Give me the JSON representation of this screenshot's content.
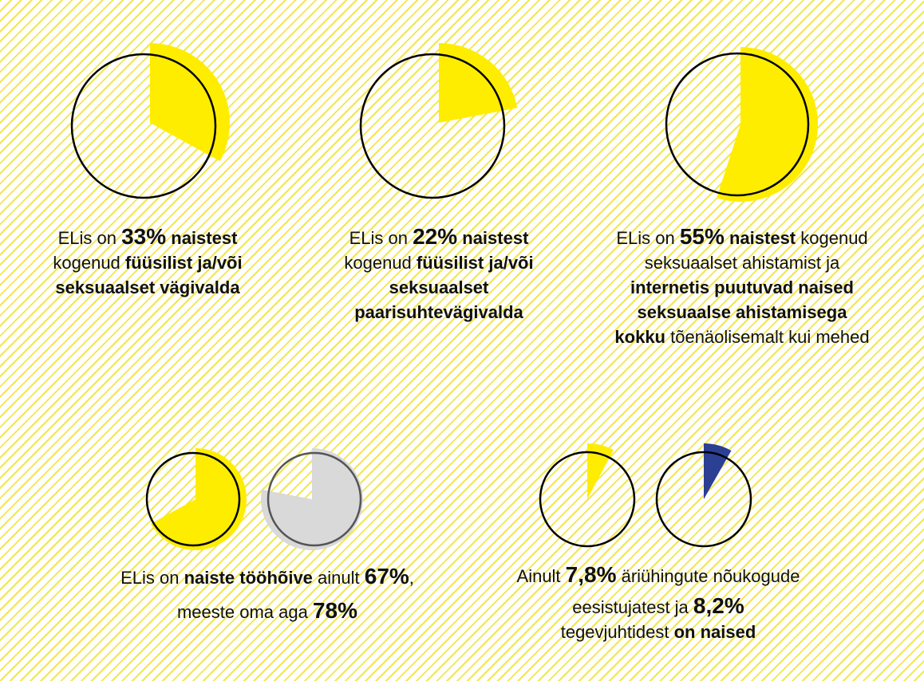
{
  "colors": {
    "yellow": "#ffed00",
    "grey": "#d9d9d9",
    "blue": "#2b3f93",
    "outline": "#000000",
    "grey_outline": "#555555"
  },
  "chart_data": [
    {
      "type": "pie",
      "value_percent": 33,
      "color": "yellow",
      "caption": {
        "l1a": "ELis on ",
        "l1b": "33%",
        "l1c": " naistest",
        "l2a": "kogenud ",
        "l2b": "füüsilist ja/või",
        "l3": "seksuaalset vägivalda"
      }
    },
    {
      "type": "pie",
      "value_percent": 22,
      "color": "yellow",
      "caption": {
        "l1a": "ELis on ",
        "l1b": "22%",
        "l1c": " naistest",
        "l2a": "kogenud ",
        "l2b": "füüsilist ja/või",
        "l3": "seksuaalset",
        "l4": "paarisuhtevägivalda"
      }
    },
    {
      "type": "pie",
      "value_percent": 55,
      "color": "yellow",
      "caption": {
        "l1a": "ELis on ",
        "l1b": "55%",
        "l1c": " naistest",
        "l1d": " kogenud",
        "l2": "seksuaalset ahistamist ja",
        "l3": "internetis puutuvad naised",
        "l4": "seksuaalse ahistamisega",
        "l5a": "kokku",
        "l5b": " tõenäolisemalt kui mehed"
      }
    },
    {
      "type": "pie",
      "series": [
        {
          "value_percent": 67,
          "color": "yellow"
        },
        {
          "value_percent": 78,
          "color": "grey"
        }
      ],
      "caption": {
        "l1a": "ELis on ",
        "l1b": "naiste tööhõive",
        "l1c": " ainult ",
        "l1d": "67%",
        "l1e": ",",
        "l2a": "meeste oma aga ",
        "l2b": "78%"
      }
    },
    {
      "type": "pie",
      "series": [
        {
          "value_percent": 7.8,
          "color": "yellow"
        },
        {
          "value_percent": 8.2,
          "color": "blue"
        }
      ],
      "caption": {
        "l1a": "Ainult ",
        "l1b": "7,8%",
        "l1c": " äriühingute nõukogude",
        "l2a": "eesistujatest ja ",
        "l2b": "8,2%",
        "l3a": "tegevjuhtidest ",
        "l3b": "on naised"
      }
    }
  ]
}
